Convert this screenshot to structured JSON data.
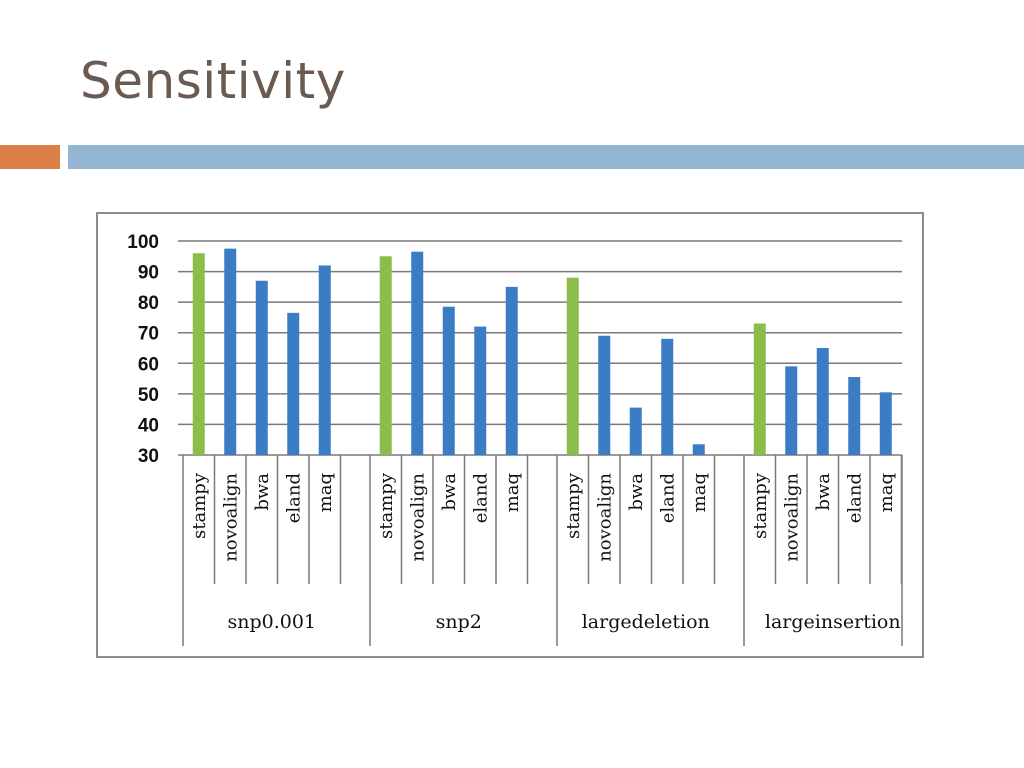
{
  "slide": {
    "title": "Sensitivity",
    "colors": {
      "title": "#6b5a50",
      "accent_orange": "#dd8047",
      "accent_blue": "#94b6d2"
    }
  },
  "chart_data": {
    "type": "bar",
    "title": "",
    "xlabel": "",
    "ylabel": "",
    "ylim": [
      30,
      100
    ],
    "yticks": [
      100,
      90,
      80,
      70,
      60,
      50,
      40,
      30
    ],
    "grid": true,
    "colors": {
      "stampy": "#8cbd4a",
      "other": "#3b7dc4",
      "grid": "#7a7a7a"
    },
    "groups": [
      {
        "name": "snp0.001",
        "categories": [
          "stampy",
          "novoalign",
          "bwa",
          "eland",
          "maq"
        ],
        "values": [
          96,
          97.5,
          87,
          76.5,
          92
        ]
      },
      {
        "name": "snp2",
        "categories": [
          "stampy",
          "novoalign",
          "bwa",
          "eland",
          "maq"
        ],
        "values": [
          95,
          96.5,
          78.5,
          72,
          85
        ]
      },
      {
        "name": "largedeletion",
        "categories": [
          "stampy",
          "novoalign",
          "bwa",
          "eland",
          "maq"
        ],
        "values": [
          88,
          69,
          45.5,
          68,
          33.5
        ]
      },
      {
        "name": "largeinsertion",
        "categories": [
          "stampy",
          "novoalign",
          "bwa",
          "eland",
          "maq"
        ],
        "values": [
          73,
          59,
          65,
          55.5,
          50.5
        ]
      }
    ]
  }
}
